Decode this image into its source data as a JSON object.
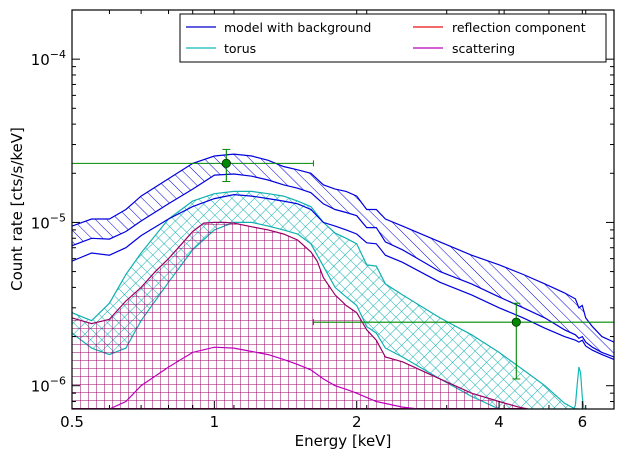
{
  "chart_data": {
    "type": "line",
    "xlabel": "Energy [keV]",
    "ylabel": "Count rate [cts/s/keV]",
    "xscale": "log",
    "yscale": "log",
    "xlim": [
      0.5,
      7.0
    ],
    "ylim": [
      7.2e-07,
      0.0002
    ],
    "x_ticks": [
      {
        "value": 0.5,
        "label": "0.5"
      },
      {
        "value": 1,
        "label": "1"
      },
      {
        "value": 2,
        "label": "2"
      },
      {
        "value": 4,
        "label": "4"
      },
      {
        "value": 6,
        "label": "6"
      }
    ],
    "y_ticks": [
      {
        "value": 0.0001,
        "base": "10",
        "exp": "−4"
      },
      {
        "value": 1e-05,
        "base": "10",
        "exp": "−5"
      },
      {
        "value": 1e-06,
        "base": "10",
        "exp": "−6"
      }
    ],
    "legend": {
      "placement": "top-right",
      "columns": 2,
      "entries": [
        {
          "name": "model with background",
          "color": "#0000cc"
        },
        {
          "name": "reflection component",
          "color": "#ee1111"
        },
        {
          "name": "torus",
          "color": "#11b8b8"
        },
        {
          "name": "scattering",
          "color": "#bb00bb"
        }
      ]
    },
    "bands": [
      {
        "series": "model with background",
        "color": "#0000dd",
        "pattern": "diagonal",
        "x": [
          0.5,
          0.55,
          0.6,
          0.65,
          0.7,
          0.8,
          0.9,
          1.0,
          1.1,
          1.2,
          1.3,
          1.4,
          1.5,
          1.6,
          1.7,
          1.8,
          1.9,
          2.0,
          2.1,
          2.2,
          2.3,
          2.5,
          3.0,
          3.5,
          4.0,
          4.5,
          5.0,
          5.5,
          5.8,
          5.9,
          6.0,
          6.1,
          6.3,
          6.6,
          7.0
        ],
        "upper": [
          9.5e-06,
          1.05e-05,
          1.05e-05,
          1.2e-05,
          1.45e-05,
          1.85e-05,
          2.3e-05,
          2.55e-05,
          2.62e-05,
          2.55e-05,
          2.4e-05,
          2.2e-05,
          2.1e-05,
          2e-05,
          1.7e-05,
          1.6e-05,
          1.55e-05,
          1.45e-05,
          1.2e-05,
          1.2e-05,
          1.05e-05,
          9.5e-06,
          7.6e-06,
          6.3e-06,
          5.5e-06,
          4.8e-06,
          4.2e-06,
          3.7e-06,
          3.4e-06,
          3e-06,
          3.1e-06,
          2.6e-06,
          2.3e-06,
          2e-06,
          1.85e-06
        ],
        "lower": [
          7.2e-06,
          8e-06,
          7.9e-06,
          8.8e-06,
          1.02e-05,
          1.3e-05,
          1.6e-05,
          1.95e-05,
          1.98e-05,
          1.92e-05,
          1.82e-05,
          1.7e-05,
          1.62e-05,
          1.52e-05,
          1.3e-05,
          1.2e-05,
          1.15e-05,
          1.1e-05,
          9.3e-06,
          9.3e-06,
          7.6e-06,
          6.8e-06,
          5e-06,
          4.2e-06,
          3.5e-06,
          3e-06,
          2.6e-06,
          2.2e-06,
          2.05e-06,
          1.95e-06,
          2e-06,
          1.85e-06,
          1.72e-06,
          1.6e-06,
          1.5e-06
        ]
      },
      {
        "series": "torus",
        "color": "#11b0b0",
        "pattern": "crosshatch",
        "x": [
          0.5,
          0.55,
          0.6,
          0.65,
          0.7,
          0.8,
          0.9,
          1.0,
          1.1,
          1.2,
          1.3,
          1.4,
          1.5,
          1.6,
          1.7,
          1.8,
          1.9,
          2.0,
          2.1,
          2.2,
          2.3,
          2.5,
          3.0,
          3.5,
          4.0,
          4.5,
          5.0,
          5.5,
          5.8,
          5.9
        ],
        "upper": [
          2.8e-06,
          2.5e-06,
          3.2e-06,
          4.8e-06,
          6.5e-06,
          1.05e-05,
          1.35e-05,
          1.5e-05,
          1.55e-05,
          1.55e-05,
          1.5e-05,
          1.45e-05,
          1.35e-05,
          1.25e-05,
          1e-05,
          8.6e-06,
          8e-06,
          7.4e-06,
          5.5e-06,
          5.4e-06,
          4.2e-06,
          3.6e-06,
          2.6e-06,
          2.05e-06,
          1.6e-06,
          1.25e-06,
          1e-06,
          7.8e-07,
          7.2e-07,
          7.2e-07
        ],
        "lower": [
          2.1e-06,
          1.7e-06,
          1.55e-06,
          1.7e-06,
          2.5e-06,
          4.3e-06,
          6.8e-06,
          9e-06,
          1e-05,
          1e-05,
          9.5e-06,
          9e-06,
          8.5e-06,
          7.4e-06,
          5.4e-06,
          4e-06,
          3.5e-06,
          3.1e-06,
          2.3e-06,
          2.1e-06,
          1.7e-06,
          1.5e-06,
          1.1e-06,
          8.6e-07,
          7.2e-07,
          7.2e-07,
          7.2e-07,
          7.2e-07,
          7.2e-07,
          7.2e-07
        ]
      },
      {
        "series": "scattering",
        "color": "#990066",
        "pattern": "grid",
        "x": [
          0.5,
          0.55,
          0.6,
          0.65,
          0.7,
          0.75,
          0.8,
          0.85,
          0.9,
          0.95,
          1.0,
          1.05,
          1.1,
          1.2,
          1.3,
          1.4,
          1.5,
          1.6,
          1.65,
          1.7,
          1.8,
          1.9,
          2.0,
          2.1,
          2.2,
          2.3,
          2.5,
          3.0,
          3.5,
          4.0,
          4.4,
          4.6
        ],
        "upper": [
          2.6e-06,
          2.4e-06,
          2.55e-06,
          3.3e-06,
          4e-06,
          5e-06,
          6e-06,
          7.3e-06,
          8.8e-06,
          9.9e-06,
          1e-05,
          1e-05,
          9.9e-06,
          9.4e-06,
          9e-06,
          8.5e-06,
          7.8e-06,
          6.6e-06,
          5.8e-06,
          4.6e-06,
          3.6e-06,
          3.1e-06,
          2.8e-06,
          2.2e-06,
          1.9e-06,
          1.5e-06,
          1.4e-06,
          1.1e-06,
          9e-07,
          8e-07,
          7.4e-07,
          7.2e-07
        ],
        "lower": [
          7.2e-07,
          7.2e-07,
          7.2e-07,
          7.2e-07,
          7.2e-07,
          7.2e-07,
          7.2e-07,
          7.2e-07,
          7.2e-07,
          7.2e-07,
          7.2e-07,
          7.2e-07,
          7.2e-07,
          7.2e-07,
          7.2e-07,
          7.2e-07,
          7.2e-07,
          7.2e-07,
          7.2e-07,
          7.2e-07,
          7.2e-07,
          7.2e-07,
          7.2e-07,
          7.2e-07,
          7.2e-07,
          7.2e-07,
          7.2e-07,
          7.2e-07,
          7.2e-07,
          7.2e-07,
          7.2e-07,
          7.2e-07
        ]
      }
    ],
    "lines": [
      {
        "series": "model with background",
        "color": "#0000dd",
        "x": [
          0.5,
          0.55,
          0.6,
          0.65,
          0.7,
          0.8,
          0.9,
          1.0,
          1.1,
          1.2,
          1.3,
          1.4,
          1.5,
          1.6,
          1.7,
          1.8,
          1.9,
          2.0,
          2.1,
          2.2,
          2.3,
          2.5,
          3.0,
          3.5,
          4.0,
          4.5,
          5.0,
          5.5,
          5.8,
          5.9,
          6.0,
          6.1,
          6.3,
          6.6,
          7.0
        ],
        "y": [
          5.8e-06,
          6.5e-06,
          6.3e-06,
          7e-06,
          8.3e-06,
          1.05e-05,
          1.25e-05,
          1.4e-05,
          1.48e-05,
          1.45e-05,
          1.4e-05,
          1.35e-05,
          1.3e-05,
          1.2e-05,
          1e-05,
          9.5e-06,
          9e-06,
          8.5e-06,
          7.5e-06,
          7.4e-06,
          6.3e-06,
          5.7e-06,
          4.3e-06,
          3.6e-06,
          3e-06,
          2.6e-06,
          2.25e-06,
          2e-06,
          1.9e-06,
          1.85e-06,
          1.9e-06,
          1.75e-06,
          1.65e-06,
          1.55e-06,
          1.45e-06
        ]
      },
      {
        "series": "torus",
        "color": "#11b8b8",
        "x": [
          5.75,
          5.8,
          5.85,
          5.9,
          5.95,
          6.0,
          6.05,
          6.1,
          6.15
        ],
        "y": [
          7.2e-07,
          7.6e-07,
          1e-06,
          1.3e-06,
          1.2e-06,
          8.5e-07,
          7.2e-07,
          7.2e-07,
          7.2e-07
        ]
      },
      {
        "series": "scattering",
        "color": "#bb00bb",
        "x": [
          0.6,
          0.65,
          0.7,
          0.8,
          0.9,
          1.0,
          1.1,
          1.2,
          1.3,
          1.4,
          1.5,
          1.6,
          1.7,
          1.8,
          1.9,
          2.0,
          2.2,
          2.5,
          2.7
        ],
        "y": [
          7.2e-07,
          8e-07,
          1e-06,
          1.3e-06,
          1.6e-06,
          1.72e-06,
          1.7e-06,
          1.62e-06,
          1.55e-06,
          1.45e-06,
          1.35e-06,
          1.25e-06,
          1.1e-06,
          1e-06,
          9.5e-07,
          9e-07,
          8e-07,
          7.4e-07,
          7.2e-07
        ]
      }
    ],
    "data_points": [
      {
        "x": 1.06,
        "y": 2.3e-05,
        "xerr": [
          0.5,
          1.62
        ],
        "yerr": [
          1.78e-05,
          2.8e-05
        ],
        "color": "#008800"
      },
      {
        "x": 4.35,
        "y": 2.45e-06,
        "xerr": [
          1.62,
          7.0
        ],
        "yerr": [
          1.1e-06,
          3.2e-06
        ],
        "color": "#008800"
      }
    ]
  }
}
